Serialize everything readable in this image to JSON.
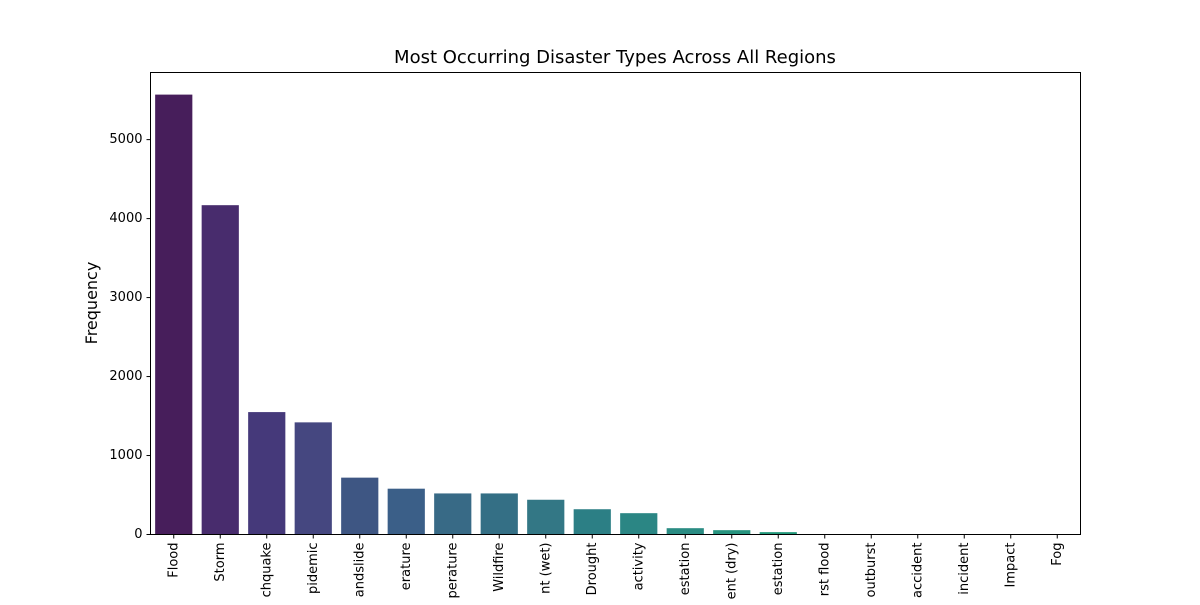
{
  "chart_data": {
    "type": "bar",
    "title": "Most Occurring Disaster Types Across All Regions",
    "xlabel": "",
    "ylabel": "Frequency",
    "ylim": [
      0,
      5850
    ],
    "yticks": [
      0,
      1000,
      2000,
      3000,
      4000,
      5000
    ],
    "grid": false,
    "legend": "none",
    "categories": [
      "Flood",
      "Storm",
      "chquake",
      "pidemic",
      "andslide",
      "erature",
      "perature",
      "Wildfire",
      "nt (wet)",
      "Drought",
      "activity",
      "estation",
      "ent (dry)",
      "estation",
      "rst flood",
      "outburst",
      "accident",
      "incident",
      "Impact",
      "Fog"
    ],
    "values": [
      5570,
      4170,
      1550,
      1420,
      720,
      580,
      520,
      520,
      440,
      320,
      270,
      80,
      55,
      30,
      5,
      3,
      2,
      1,
      1,
      1
    ],
    "colors": [
      "#471e5b",
      "#482c6d",
      "#45397a",
      "#454780",
      "#3e5683",
      "#3b5f88",
      "#386a86",
      "#346f85",
      "#337785",
      "#2c7f85",
      "#2b8684",
      "#2a8c83",
      "#27947f",
      "#23997b",
      "#229e78",
      "#27a573",
      "#2fab6d",
      "#3db166",
      "#4cb75d",
      "#5ebc55"
    ]
  }
}
